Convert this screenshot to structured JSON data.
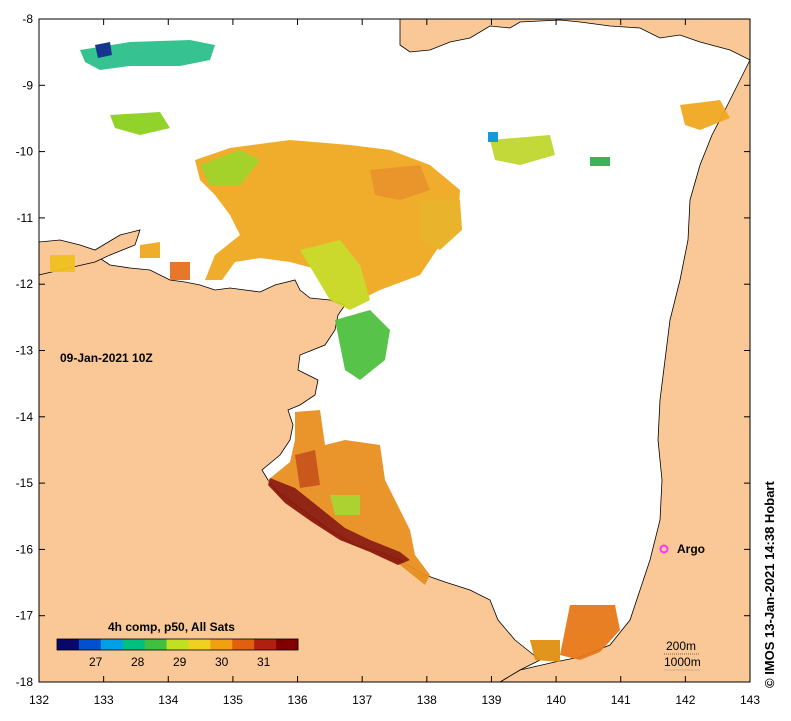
{
  "map": {
    "date_label": "09-Jan-2021 10Z",
    "credit": "© IMOS 13-Jan-2021 14:38 Hobart",
    "land_color": "#f9c896",
    "sea_color": "#ffffff",
    "x_ticks": [
      "132",
      "133",
      "134",
      "135",
      "136",
      "137",
      "138",
      "139",
      "140",
      "141",
      "142",
      "143"
    ],
    "y_ticks": [
      "-8",
      "-9",
      "-10",
      "-11",
      "-12",
      "-13",
      "-14",
      "-15",
      "-16",
      "-17",
      "-18"
    ],
    "legend": {
      "title": "4h comp, p50, All Sats",
      "labels": [
        "27",
        "28",
        "29",
        "30",
        "31"
      ],
      "colors": [
        "#08086b",
        "#0050d0",
        "#00a0e8",
        "#00c080",
        "#40c040",
        "#c0e020",
        "#f0d020",
        "#f0a010",
        "#e06010",
        "#b02010",
        "#800000"
      ]
    },
    "argo": {
      "label": "Argo",
      "color": "#ff33ff"
    },
    "scale": {
      "depth1": "200m",
      "depth2": "1000m"
    }
  }
}
